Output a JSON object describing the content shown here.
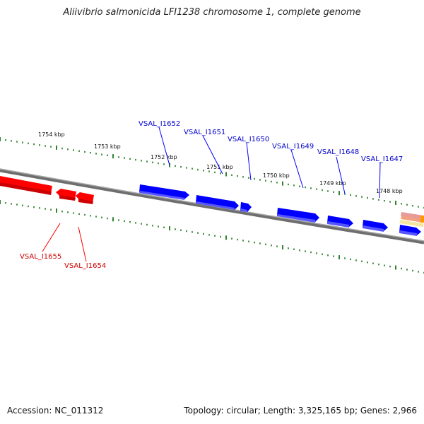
{
  "title": "Aliivibrio salmonicida LFI1238 chromosome 1, complete genome",
  "footer": {
    "accession": "Accession: NC_011312",
    "genome_info": "Topology: circular; Length: 3,325,165 bp; Genes: 2,966"
  },
  "colors": {
    "forward_gene": "#0000ff",
    "reverse_gene": "#ff0000",
    "backbone": "#808080",
    "ticks": "#006400"
  },
  "tick_labels": [
    "1754 kbp",
    "1753 kbp",
    "1752 kbp",
    "1751 kbp",
    "1750 kbp",
    "1749 kbp",
    "1748 kbp"
  ],
  "forward_gene_labels": [
    "VSAL_I1652",
    "VSAL_I1651",
    "VSAL_I1650",
    "VSAL_I1649",
    "VSAL_I1648",
    "VSAL_I1647"
  ],
  "reverse_gene_labels": [
    "VSAL_I1655",
    "VSAL_I1654"
  ]
}
